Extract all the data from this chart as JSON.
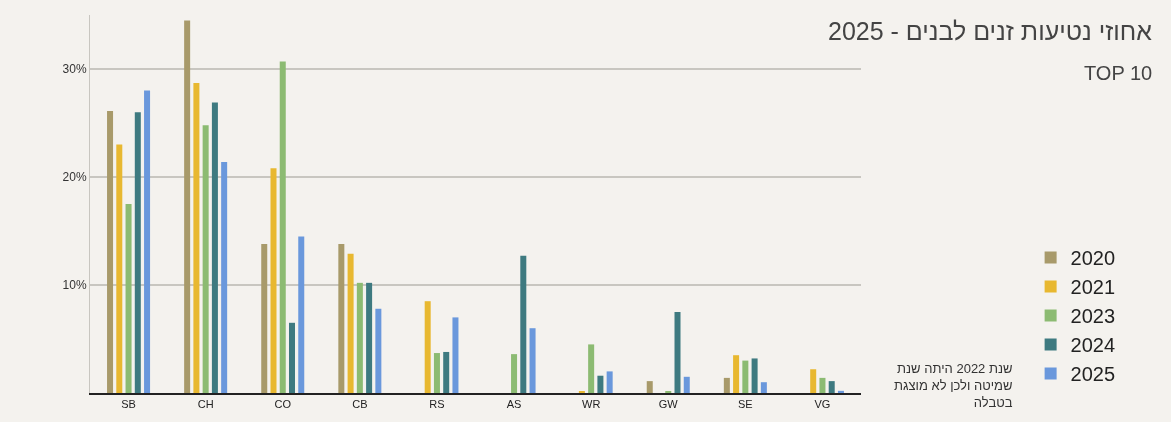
{
  "chart_data": {
    "type": "bar",
    "title": "אחוזי נטיעות זנים לבנים - 2025",
    "subtitle": "TOP 10",
    "categories": [
      "SB",
      "CH",
      "CO",
      "CB",
      "RS",
      "AS",
      "WR",
      "GW",
      "SE",
      "VG"
    ],
    "series": [
      {
        "name": "2020",
        "color": "#a89a6a",
        "values": [
          26.1,
          34.5,
          13.8,
          13.8,
          null,
          null,
          null,
          1.1,
          1.4,
          null
        ]
      },
      {
        "name": "2021",
        "color": "#e8b830",
        "values": [
          23.0,
          28.7,
          20.8,
          12.9,
          8.5,
          null,
          0.1,
          null,
          3.5,
          2.2
        ]
      },
      {
        "name": "2023",
        "color": "#8cbb72",
        "values": [
          17.5,
          24.8,
          30.7,
          10.2,
          3.7,
          3.6,
          4.5,
          0.1,
          3.0,
          1.4
        ]
      },
      {
        "name": "2024",
        "color": "#3e7a80",
        "values": [
          26.0,
          26.9,
          6.5,
          10.2,
          3.8,
          12.7,
          1.6,
          7.5,
          3.2,
          1.1
        ]
      },
      {
        "name": "2025",
        "color": "#6a98dc",
        "values": [
          28.0,
          21.4,
          14.5,
          7.8,
          7.0,
          6.0,
          2.0,
          1.5,
          1.0,
          0.2
        ]
      }
    ],
    "ylim": [
      0,
      35
    ],
    "yticks": [
      {
        "value": 10,
        "label": "10%"
      },
      {
        "value": 20,
        "label": "20%"
      },
      {
        "value": 30,
        "label": "30%"
      }
    ],
    "grid": "y",
    "legend": "right",
    "annotations": [
      "שנת 2022 היתה שנת\nשמיטה ולכן לא מוצגת\nבטבלה"
    ]
  }
}
